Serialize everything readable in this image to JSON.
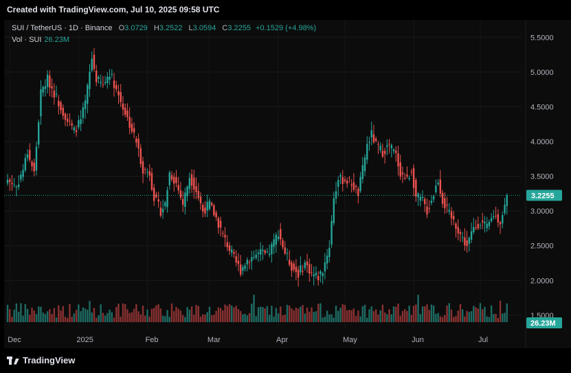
{
  "header": {
    "created": "Created with TradingView.com, Jul 10, 2025 09:58 UTC"
  },
  "legend": {
    "symbol": "SUI / TetherUS · 1D · Binance",
    "open_label": "O",
    "open": "3.0729",
    "high_label": "H",
    "high": "3.2522",
    "low_label": "L",
    "low": "3.0594",
    "close_label": "C",
    "close": "3.2255",
    "change": "+0.1529 (+4.98%)",
    "vol_label": "Vol · SUI",
    "vol_value": "26.23M"
  },
  "footer": {
    "brand": "TradingView"
  },
  "colors": {
    "up": "#26a69a",
    "down": "#ef5350",
    "vol_up": "#1e6b63",
    "vol_down": "#8a3131",
    "price_badge": "#26a69a",
    "background": "#0c0c0c"
  },
  "chart_data": {
    "type": "candlestick",
    "symbol": "SUI / TetherUS",
    "interval": "1D",
    "exchange": "Binance",
    "y_ticks": [
      "5.5000",
      "5.0000",
      "4.5000",
      "4.0000",
      "3.5000",
      "3.0000",
      "2.5000",
      "2.0000",
      "1.5000"
    ],
    "ylim": [
      1.4,
      5.75
    ],
    "x_ticks": [
      "Dec",
      "2025",
      "Feb",
      "Mar",
      "Apr",
      "May",
      "Jun",
      "Jul"
    ],
    "x_tick_days": [
      1,
      32,
      63,
      91,
      122,
      152,
      183,
      213
    ],
    "last_price_label": "3.2255",
    "last_price": 3.2255,
    "last_volume_label": "26.23M",
    "close_series_anchors": [
      [
        0,
        3.45
      ],
      [
        4,
        3.35
      ],
      [
        7,
        3.6
      ],
      [
        9,
        3.85
      ],
      [
        12,
        3.55
      ],
      [
        15,
        4.7
      ],
      [
        18,
        4.9
      ],
      [
        21,
        4.7
      ],
      [
        24,
        4.5
      ],
      [
        27,
        4.3
      ],
      [
        30,
        4.15
      ],
      [
        33,
        4.3
      ],
      [
        35,
        4.55
      ],
      [
        38,
        5.2
      ],
      [
        40,
        4.9
      ],
      [
        43,
        4.8
      ],
      [
        46,
        5.0
      ],
      [
        49,
        4.75
      ],
      [
        52,
        4.5
      ],
      [
        55,
        4.25
      ],
      [
        58,
        4.0
      ],
      [
        61,
        3.6
      ],
      [
        64,
        3.55
      ],
      [
        66,
        3.2
      ],
      [
        69,
        3.0
      ],
      [
        71,
        3.1
      ],
      [
        73,
        3.55
      ],
      [
        76,
        3.4
      ],
      [
        79,
        3.1
      ],
      [
        82,
        3.5
      ],
      [
        85,
        3.3
      ],
      [
        88,
        3.0
      ],
      [
        91,
        3.1
      ],
      [
        94,
        2.9
      ],
      [
        97,
        2.65
      ],
      [
        100,
        2.45
      ],
      [
        103,
        2.25
      ],
      [
        105,
        2.15
      ],
      [
        108,
        2.3
      ],
      [
        111,
        2.35
      ],
      [
        114,
        2.4
      ],
      [
        117,
        2.35
      ],
      [
        120,
        2.55
      ],
      [
        122,
        2.7
      ],
      [
        125,
        2.4
      ],
      [
        128,
        2.2
      ],
      [
        131,
        2.1
      ],
      [
        134,
        2.25
      ],
      [
        137,
        2.1
      ],
      [
        140,
        2.05
      ],
      [
        142,
        2.15
      ],
      [
        145,
        2.5
      ],
      [
        147,
        3.2
      ],
      [
        149,
        3.45
      ],
      [
        152,
        3.45
      ],
      [
        155,
        3.4
      ],
      [
        158,
        3.25
      ],
      [
        160,
        3.6
      ],
      [
        162,
        3.95
      ],
      [
        164,
        4.1
      ],
      [
        166,
        3.95
      ],
      [
        169,
        3.85
      ],
      [
        172,
        3.95
      ],
      [
        175,
        3.8
      ],
      [
        177,
        3.55
      ],
      [
        180,
        3.45
      ],
      [
        182,
        3.6
      ],
      [
        184,
        3.2
      ],
      [
        187,
        3.15
      ],
      [
        189,
        3.0
      ],
      [
        192,
        3.25
      ],
      [
        194,
        3.45
      ],
      [
        196,
        3.15
      ],
      [
        199,
        2.95
      ],
      [
        202,
        2.8
      ],
      [
        205,
        2.6
      ],
      [
        207,
        2.5
      ],
      [
        210,
        2.75
      ],
      [
        213,
        2.85
      ],
      [
        216,
        2.75
      ],
      [
        219,
        2.95
      ],
      [
        222,
        2.85
      ],
      [
        224,
        3.07
      ],
      [
        225,
        3.2255
      ]
    ],
    "volume_unit": "M",
    "last_candle": {
      "open": 3.0729,
      "high": 3.2522,
      "low": 3.0594,
      "close": 3.2255,
      "volume": 26.23
    }
  }
}
